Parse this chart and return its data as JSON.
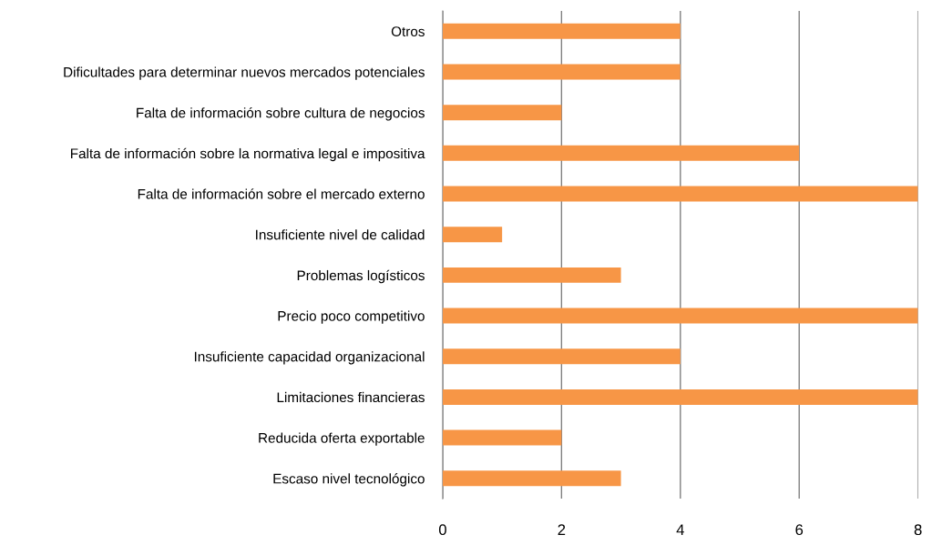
{
  "chart_data": {
    "type": "bar",
    "orientation": "horizontal",
    "categories": [
      "Otros",
      "Dificultades para determinar nuevos mercados potenciales",
      "Falta de información sobre cultura de negocios",
      "Falta de información sobre la normativa legal e impositiva",
      "Falta de información sobre el mercado externo",
      "Insuficiente nivel de calidad",
      "Problemas logísticos",
      "Precio poco competitivo",
      "Insuficiente capacidad organizacional",
      "Limitaciones financieras",
      "Reducida oferta exportable",
      "Escaso nivel tecnológico"
    ],
    "values": [
      4,
      4,
      2,
      6,
      8,
      1,
      3,
      8,
      4,
      8,
      2,
      3
    ],
    "color": "#f79646",
    "xlim": [
      0,
      8
    ],
    "xticks": [
      0,
      2,
      4,
      6,
      8
    ],
    "grid": "x",
    "legend": false
  }
}
